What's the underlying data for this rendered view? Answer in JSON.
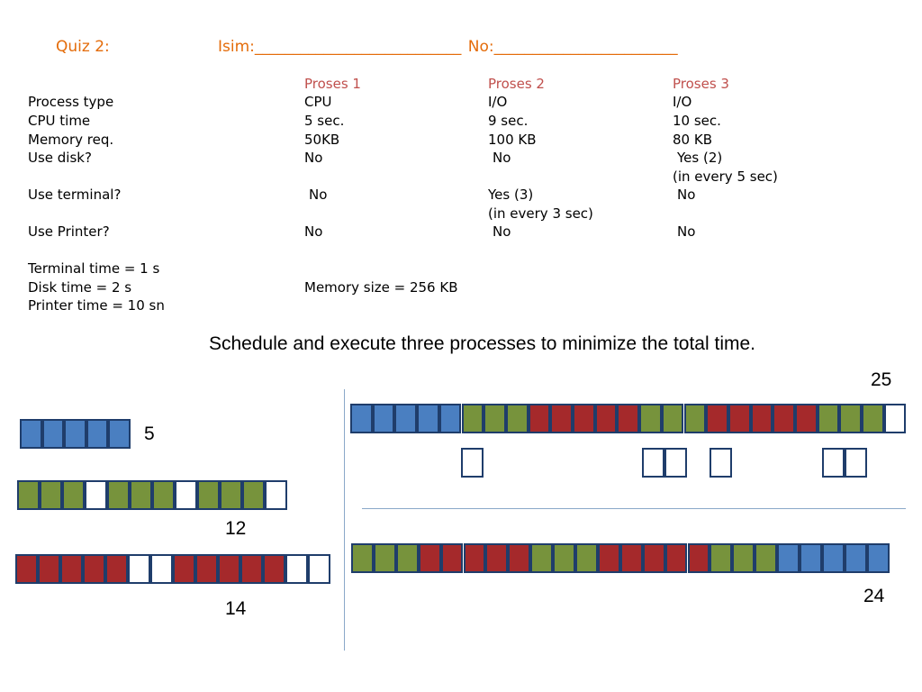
{
  "header": {
    "quiz": "Quiz 2:",
    "name_label": "Isim:",
    "name_blank": "___________________________",
    "no_label": "No:",
    "no_blank": "________________________"
  },
  "table": {
    "columns": [
      "Proses 1",
      "Proses 2",
      "Proses 3"
    ],
    "rows": [
      {
        "label": "Process type",
        "values": [
          "CPU",
          "I/O",
          "I/O"
        ]
      },
      {
        "label": "CPU time",
        "values": [
          "5 sec.",
          "9 sec.",
          "10 sec."
        ]
      },
      {
        "label": "Memory req.",
        "values": [
          "50KB",
          "100 KB",
          "80 KB"
        ]
      },
      {
        "label": "Use disk?",
        "values": [
          "No",
          "No",
          "Yes (2)"
        ],
        "notes": [
          "",
          "",
          "(in every 5 sec)"
        ]
      },
      {
        "label": "Use terminal?",
        "values": [
          "No",
          "Yes (3)",
          "No"
        ],
        "notes": [
          "",
          "(in every 3 sec)",
          ""
        ]
      },
      {
        "label": "Use Printer?",
        "values": [
          "No",
          "No",
          "No"
        ]
      }
    ]
  },
  "info": {
    "terminal_time": "Terminal time = 1 s",
    "disk_time": "Disk time = 2 s",
    "printer_time": "Printer time = 10 sn",
    "memory_size": "Memory size = 256 KB"
  },
  "instruction": "Schedule and execute three processes to minimize the total time.",
  "timelines": {
    "process1": {
      "sequence": "CCCCC",
      "total": "5"
    },
    "process2": {
      "sequence": "GGGWGGGWGGGW",
      "total": "12"
    },
    "process3": {
      "sequence": "RRRRRWWRRRRRWW",
      "total": "14"
    },
    "schedule_a": {
      "sequence": "CCCCCGGGRRRRRGGGRRRRRGGGW",
      "idle_markers": 6,
      "total": "25"
    },
    "schedule_b": {
      "sequence": "GGGRRRRRGGGRRRRRGGGCCCCC",
      "total": "24"
    }
  },
  "colors": {
    "cpu": "#4a7fc1",
    "process2": "#77933c",
    "process3": "#a5292b",
    "header": "#e46c0a",
    "column_header": "#c0504d"
  }
}
